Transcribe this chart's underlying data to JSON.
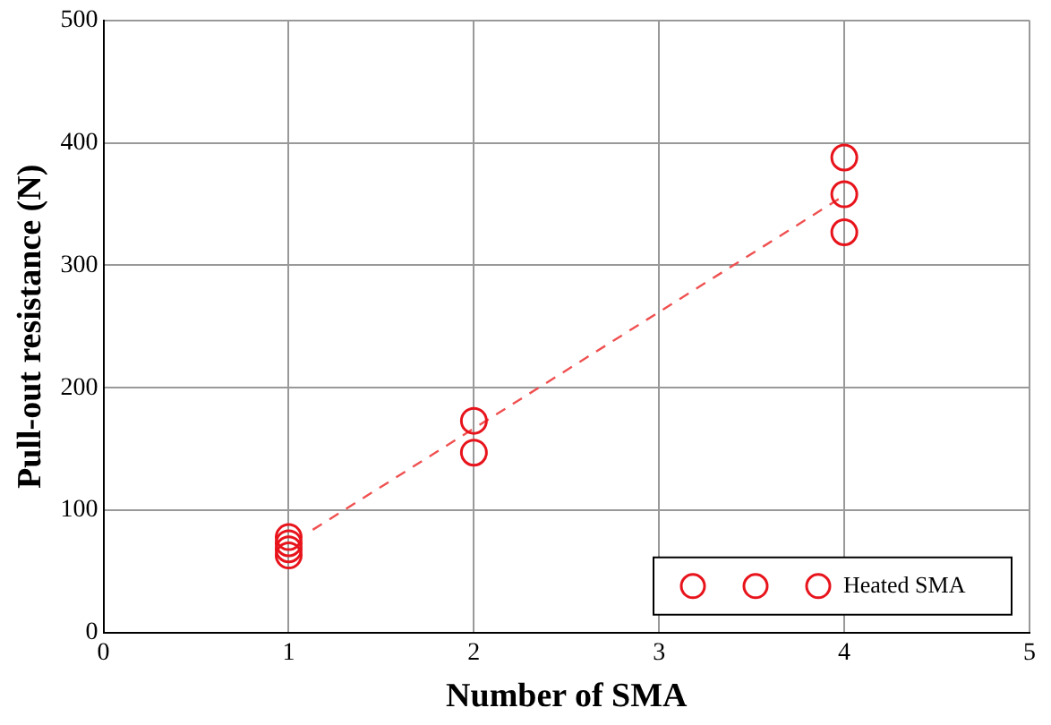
{
  "chart_data": {
    "type": "scatter",
    "xlabel": "Number of SMA",
    "ylabel": "Pull-out resistance (N)",
    "series": [
      {
        "name": "Heated SMA",
        "color": "#e8141c",
        "marker": "circle",
        "x": [
          1,
          1,
          1,
          1,
          2,
          2,
          4,
          4,
          4
        ],
        "values": [
          63,
          68,
          73,
          78,
          147,
          173,
          327,
          358,
          388
        ]
      },
      {
        "type": "line",
        "color": "#f05050",
        "line_style": "dashed",
        "marker": "none",
        "x": [
          1.13,
          4
        ],
        "values": [
          84,
          357
        ]
      }
    ],
    "xlim": [
      0,
      5
    ],
    "xticks": [
      0,
      1,
      2,
      3,
      4,
      5
    ],
    "ylim": [
      0,
      500
    ],
    "yticks": [
      0,
      100,
      200,
      300,
      400,
      500
    ],
    "grid": true,
    "legend": "bottom right"
  }
}
